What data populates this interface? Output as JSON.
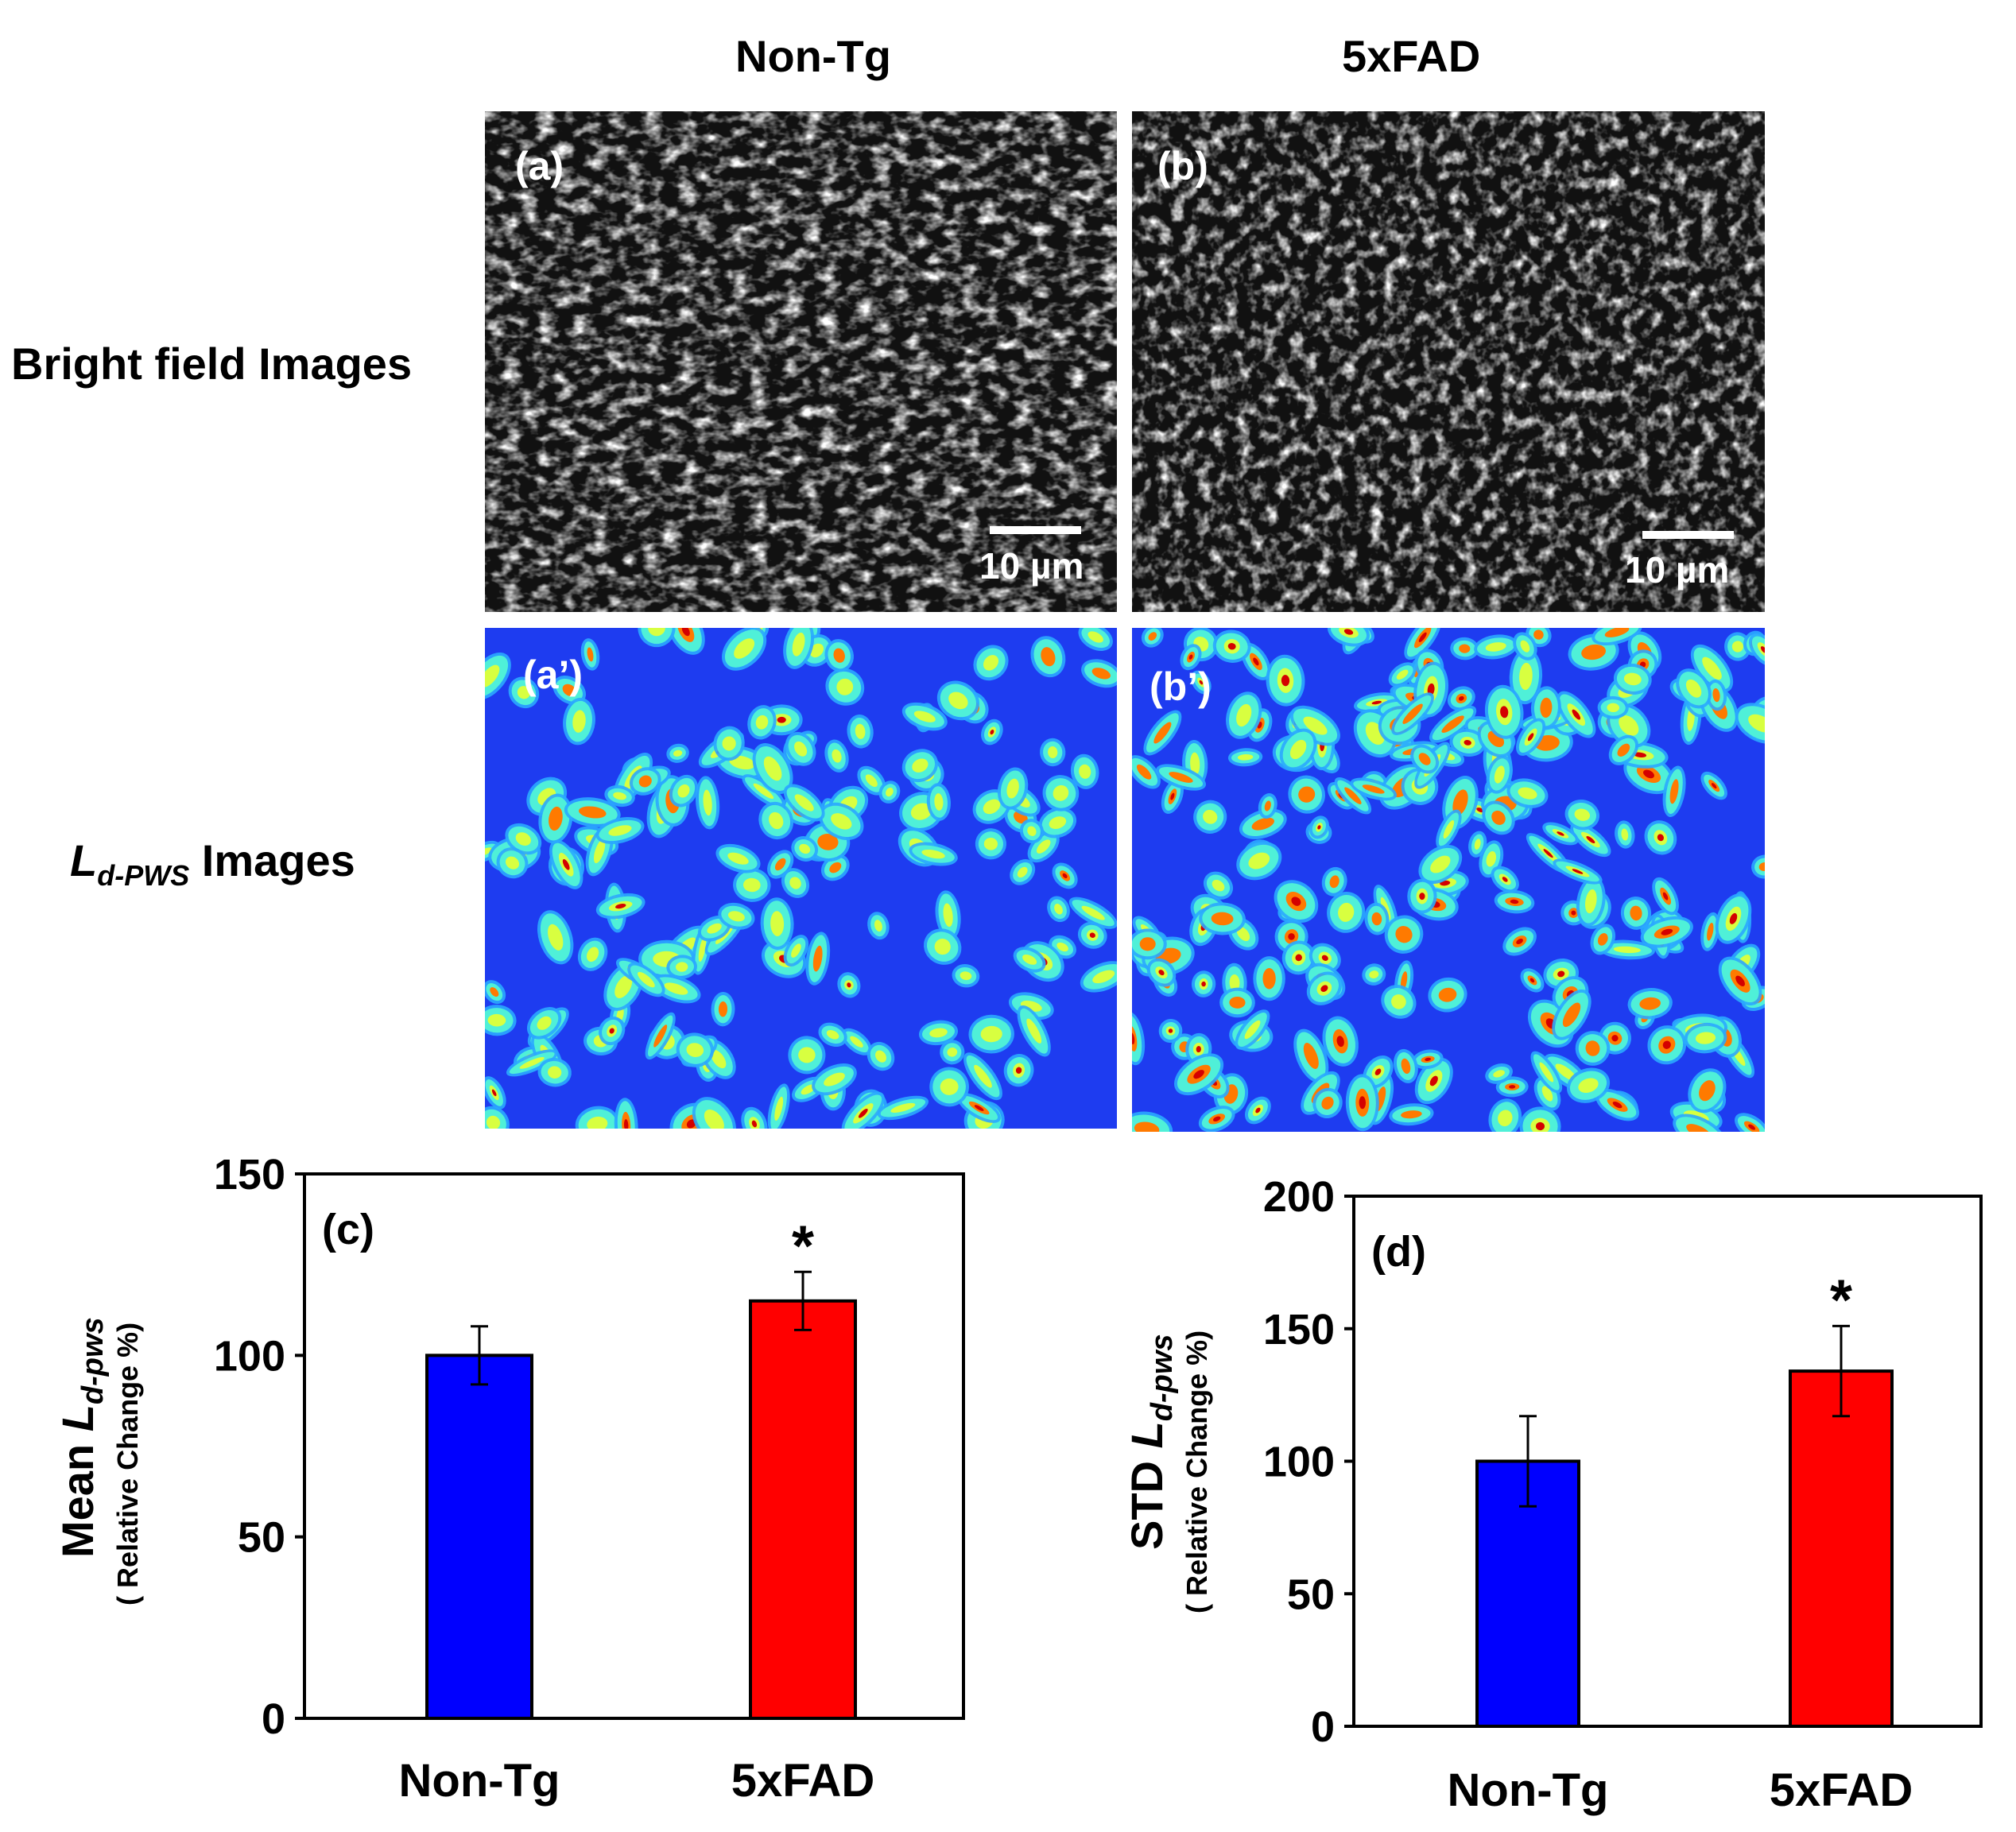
{
  "header": {
    "col1": "Non-Tg",
    "col2": "5xFAD"
  },
  "rows": {
    "brightfield": "Bright field Images",
    "ldpws_main": "L",
    "ldpws_sub": "d-PWS",
    "ldpws_rest": " Images"
  },
  "panels": {
    "a": "(a)",
    "b": "(b)",
    "a_prime": "(a’)",
    "b_prime": "(b’)",
    "scale_a": "10 µm",
    "scale_b": "10 µm"
  },
  "colors": {
    "non_tg": "#0000ff",
    "fxfad": "#ff0000"
  },
  "chart_data": [
    {
      "type": "bar",
      "panel_label": "(c)",
      "categories": [
        "Non-Tg",
        "5xFAD"
      ],
      "values": [
        100,
        115
      ],
      "errors": [
        8,
        8
      ],
      "significance": [
        "",
        "*"
      ],
      "ylim": [
        0,
        150
      ],
      "yticks": [
        0,
        50,
        100,
        150
      ],
      "ylabel_main": "Mean ",
      "ylabel_italic": "L",
      "ylabel_sub": "d-pws",
      "ylabel_second": "( Relative Change %)",
      "grid": false
    },
    {
      "type": "bar",
      "panel_label": "(d)",
      "categories": [
        "Non-Tg",
        "5xFAD"
      ],
      "values": [
        100,
        134
      ],
      "errors": [
        17,
        17
      ],
      "significance": [
        "",
        "*"
      ],
      "ylim": [
        0,
        200
      ],
      "yticks": [
        0,
        50,
        100,
        150,
        200
      ],
      "ylabel_main": "STD ",
      "ylabel_italic": "L",
      "ylabel_sub": "d-pws",
      "ylabel_second": "( Relative Change %)",
      "grid": false
    }
  ]
}
